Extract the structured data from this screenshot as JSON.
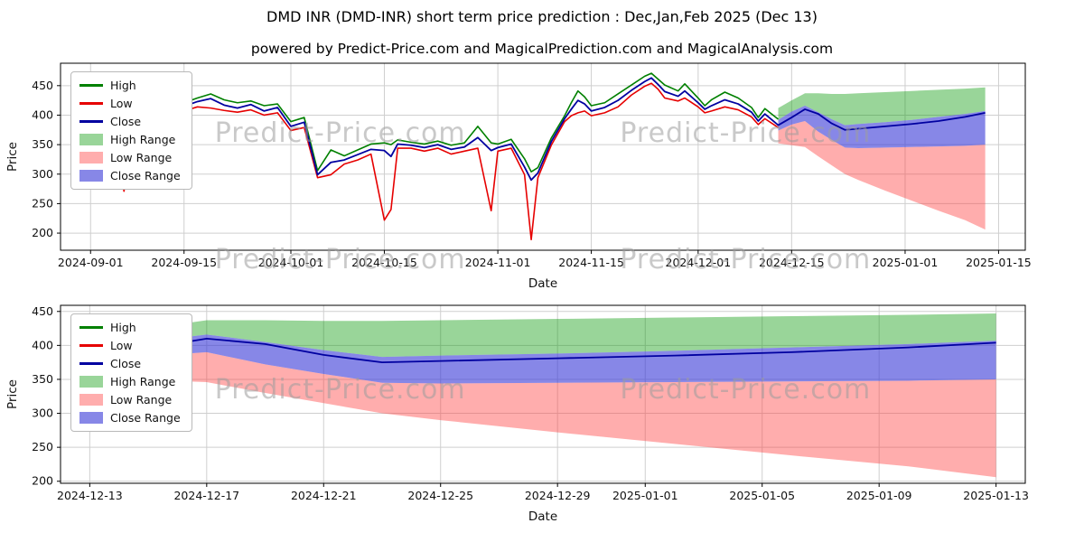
{
  "title": "DMD INR (DMD-INR) short term price prediction : Dec,Jan,Feb 2025 (Dec 13)",
  "subtitle": "powered by Predict-Price.com and MagicalPrediction.com and MagicalAnalysis.com",
  "watermark": "Predict-Price.com",
  "legend": {
    "high": "High",
    "low": "Low",
    "close": "Close",
    "high_range": "High Range",
    "low_range": "Low Range",
    "close_range": "Close Range"
  },
  "colors": {
    "high_line": "#008000",
    "low_line": "#e60000",
    "close_line": "#0000a0",
    "high_range_fill": "rgba(0,150,0,0.40)",
    "low_range_fill": "rgba(255,60,60,0.42)",
    "close_range_fill": "rgba(55,55,215,0.60)",
    "grid": "#cfcfcf",
    "spine": "#000000"
  },
  "chart_data": [
    {
      "type": "line",
      "title": "DMD INR (DMD-INR) short term price prediction : Dec,Jan,Feb 2025 (Dec 13)",
      "xlabel": "Date",
      "ylabel": "Price",
      "xlim": [
        "2024-08-27T12:00:00",
        "2025-01-19T00:00:00"
      ],
      "ylim": [
        171,
        488
      ],
      "xticks": [
        "2024-09-01",
        "2024-09-15",
        "2024-10-01",
        "2024-10-15",
        "2024-11-01",
        "2024-11-15",
        "2024-12-01",
        "2024-12-15",
        "2025-01-01",
        "2025-01-15"
      ],
      "yticks": [
        200,
        250,
        300,
        350,
        400,
        450
      ],
      "historical": {
        "dates": [
          "2024-09-01",
          "2024-09-02",
          "2024-09-04",
          "2024-09-05",
          "2024-09-06",
          "2024-09-08",
          "2024-09-09",
          "2024-09-10",
          "2024-09-12",
          "2024-09-13",
          "2024-09-15",
          "2024-09-17",
          "2024-09-19",
          "2024-09-21",
          "2024-09-23",
          "2024-09-25",
          "2024-09-27",
          "2024-09-29",
          "2024-10-01",
          "2024-10-03",
          "2024-10-05",
          "2024-10-07",
          "2024-10-09",
          "2024-10-11",
          "2024-10-13",
          "2024-10-15",
          "2024-10-16",
          "2024-10-17",
          "2024-10-19",
          "2024-10-21",
          "2024-10-23",
          "2024-10-25",
          "2024-10-27",
          "2024-10-29",
          "2024-10-31",
          "2024-11-01",
          "2024-11-03",
          "2024-11-05",
          "2024-11-06",
          "2024-11-07",
          "2024-11-09",
          "2024-11-11",
          "2024-11-12",
          "2024-11-13",
          "2024-11-14",
          "2024-11-15",
          "2024-11-17",
          "2024-11-19",
          "2024-11-21",
          "2024-11-23",
          "2024-11-24",
          "2024-11-25",
          "2024-11-26",
          "2024-11-28",
          "2024-11-29",
          "2024-12-01",
          "2024-12-02",
          "2024-12-03",
          "2024-12-05",
          "2024-12-07",
          "2024-12-09",
          "2024-12-10",
          "2024-12-11",
          "2024-12-13"
        ],
        "high": [
          428,
          443,
          408,
          419,
          400,
          429,
          439,
          406,
          409,
          396,
          421,
          429,
          436,
          426,
          421,
          424,
          416,
          419,
          389,
          396,
          306,
          341,
          331,
          341,
          351,
          353,
          350,
          358,
          354,
          351,
          356,
          349,
          353,
          381,
          353,
          351,
          359,
          326,
          304,
          311,
          361,
          399,
          421,
          441,
          431,
          416,
          421,
          436,
          451,
          466,
          471,
          461,
          451,
          441,
          453,
          429,
          416,
          426,
          439,
          429,
          413,
          396,
          411,
          393
        ],
        "low": [
          414,
          424,
          393,
          404,
          271,
          391,
          419,
          394,
          397,
          385,
          407,
          414,
          412,
          408,
          405,
          409,
          400,
          404,
          374,
          379,
          294,
          299,
          317,
          324,
          334,
          222,
          240,
          344,
          344,
          339,
          344,
          334,
          339,
          344,
          238,
          339,
          344,
          299,
          189,
          294,
          349,
          389,
          399,
          404,
          407,
          399,
          404,
          414,
          434,
          449,
          454,
          444,
          429,
          424,
          429,
          414,
          404,
          407,
          414,
          409,
          397,
          384,
          394,
          379
        ],
        "close": [
          422,
          436,
          400,
          410,
          396,
          412,
          430,
          399,
          404,
          390,
          415,
          423,
          428,
          417,
          412,
          418,
          407,
          413,
          381,
          388,
          299,
          320,
          324,
          333,
          342,
          340,
          330,
          351,
          349,
          345,
          350,
          342,
          346,
          362,
          340,
          345,
          351,
          312,
          290,
          302,
          355,
          394,
          410,
          425,
          419,
          407,
          413,
          425,
          442,
          457,
          463,
          452,
          440,
          432,
          441,
          421,
          410,
          416,
          426,
          419,
          405,
          390,
          402,
          383
        ]
      },
      "prediction": {
        "dates": [
          "2024-12-13",
          "2024-12-15",
          "2024-12-17",
          "2024-12-19",
          "2024-12-21",
          "2024-12-23",
          "2024-12-25",
          "2024-12-29",
          "2025-01-02",
          "2025-01-06",
          "2025-01-10",
          "2025-01-13"
        ],
        "close": [
          383,
          396,
          410,
          402,
          386,
          375,
          377,
          381,
          385,
          390,
          397,
          404
        ],
        "high_range": {
          "upper": [
            412,
            425,
            437,
            437,
            436,
            436,
            437,
            439,
            441,
            443,
            445,
            447
          ],
          "lower": [
            392,
            406,
            416,
            405,
            393,
            383,
            385,
            388,
            392,
            397,
            402,
            407
          ]
        },
        "low_range": {
          "upper": [
            374,
            384,
            390,
            372,
            358,
            345,
            344,
            345,
            346,
            347,
            348,
            350
          ],
          "lower": [
            352,
            349,
            346,
            330,
            315,
            300,
            290,
            272,
            255,
            238,
            222,
            206
          ]
        },
        "close_range": {
          "upper": [
            392,
            406,
            416,
            405,
            393,
            383,
            385,
            388,
            392,
            397,
            402,
            407
          ],
          "lower": [
            374,
            384,
            390,
            372,
            358,
            345,
            344,
            345,
            346,
            347,
            348,
            350
          ]
        }
      }
    },
    {
      "type": "line",
      "title": "Prediction detail",
      "xlabel": "Date",
      "ylabel": "Price",
      "xlim": [
        "2024-12-12T00:00:00",
        "2025-01-14T00:00:00"
      ],
      "ylim": [
        197,
        459
      ],
      "xticks": [
        "2024-12-13",
        "2024-12-17",
        "2024-12-21",
        "2024-12-25",
        "2024-12-29",
        "2025-01-01",
        "2025-01-05",
        "2025-01-09",
        "2025-01-13"
      ],
      "yticks": [
        200,
        250,
        300,
        350,
        400,
        450
      ],
      "historical": {
        "dates": [
          "2024-12-13",
          "2024-12-14"
        ],
        "high": [
          393,
          402
        ],
        "low": [
          379,
          387
        ],
        "close": []
      },
      "prediction": {
        "dates": [
          "2024-12-13",
          "2024-12-15",
          "2024-12-17",
          "2024-12-19",
          "2024-12-21",
          "2024-12-23",
          "2024-12-25",
          "2024-12-29",
          "2025-01-02",
          "2025-01-06",
          "2025-01-10",
          "2025-01-13"
        ],
        "close": [
          383,
          396,
          410,
          402,
          386,
          375,
          377,
          381,
          385,
          390,
          397,
          404
        ],
        "high_range": {
          "upper": [
            412,
            425,
            437,
            437,
            436,
            436,
            437,
            439,
            441,
            443,
            445,
            447
          ],
          "lower": [
            392,
            406,
            416,
            405,
            393,
            383,
            385,
            388,
            392,
            397,
            402,
            407
          ]
        },
        "low_range": {
          "upper": [
            374,
            384,
            390,
            372,
            358,
            345,
            344,
            345,
            346,
            347,
            348,
            350
          ],
          "lower": [
            352,
            349,
            346,
            330,
            315,
            300,
            290,
            272,
            255,
            238,
            222,
            206
          ]
        },
        "close_range": {
          "upper": [
            392,
            406,
            416,
            405,
            393,
            383,
            385,
            388,
            392,
            397,
            402,
            407
          ],
          "lower": [
            374,
            384,
            390,
            372,
            358,
            345,
            344,
            345,
            346,
            347,
            348,
            350
          ]
        }
      }
    }
  ]
}
